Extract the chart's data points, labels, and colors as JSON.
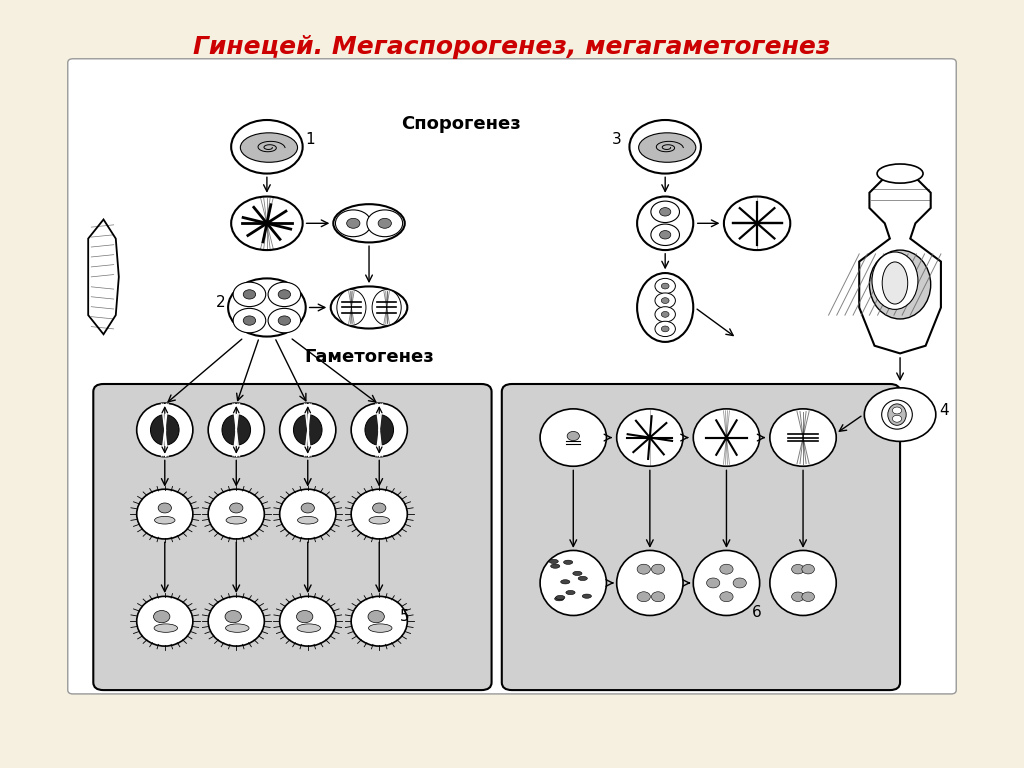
{
  "title": "Гинецей. Мегаспорогенез, мегагаметогенез",
  "title_color": "#cc0000",
  "bg_color": "#f5f0e0",
  "diagram_bg": "#ffffff",
  "gray_box_color": "#d0d0d0",
  "label_sporogenez": "Спорогенез",
  "label_gametogenez": "Гаметогенез",
  "num1": "1",
  "num2": "2",
  "num3": "3",
  "num4": "4",
  "num5": "5",
  "num6": "6"
}
